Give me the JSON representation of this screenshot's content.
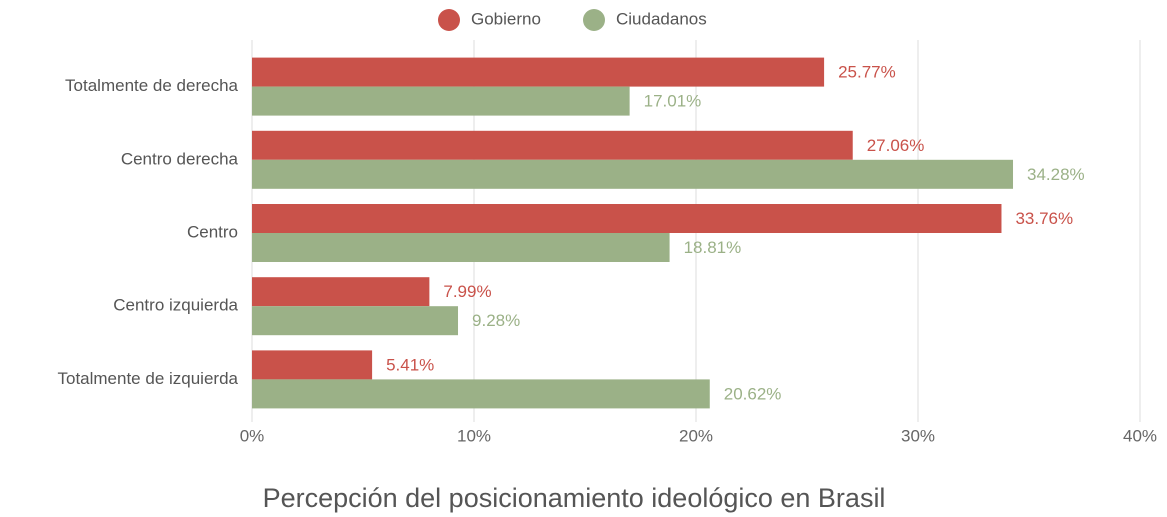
{
  "chart_data": {
    "type": "bar",
    "orientation": "horizontal",
    "title": "Percepción del posicionamiento ideológico en Brasil",
    "categories": [
      "Totalmente de derecha",
      "Centro derecha",
      "Centro",
      "Centro izquierda",
      "Totalmente de izquierda"
    ],
    "series": [
      {
        "name": "Gobierno",
        "color": "#c9524a",
        "values": [
          25.77,
          27.06,
          33.76,
          7.99,
          5.41
        ],
        "value_labels": [
          "25.77%",
          "27.06%",
          "33.76%",
          "7.99%",
          "5.41%"
        ]
      },
      {
        "name": "Ciudadanos",
        "color": "#9bb187",
        "values": [
          17.01,
          34.28,
          18.81,
          9.28,
          20.62
        ],
        "value_labels": [
          "17.01%",
          "34.28%",
          "18.81%",
          "9.28%",
          "20.62%"
        ]
      }
    ],
    "xlim": [
      0,
      40
    ],
    "xticks": [
      {
        "value": 0,
        "label": "0%"
      },
      {
        "value": 10,
        "label": "10%"
      },
      {
        "value": 20,
        "label": "20%"
      },
      {
        "value": 30,
        "label": "30%"
      },
      {
        "value": 40,
        "label": "40%"
      }
    ],
    "grid": true,
    "legend": "top"
  }
}
